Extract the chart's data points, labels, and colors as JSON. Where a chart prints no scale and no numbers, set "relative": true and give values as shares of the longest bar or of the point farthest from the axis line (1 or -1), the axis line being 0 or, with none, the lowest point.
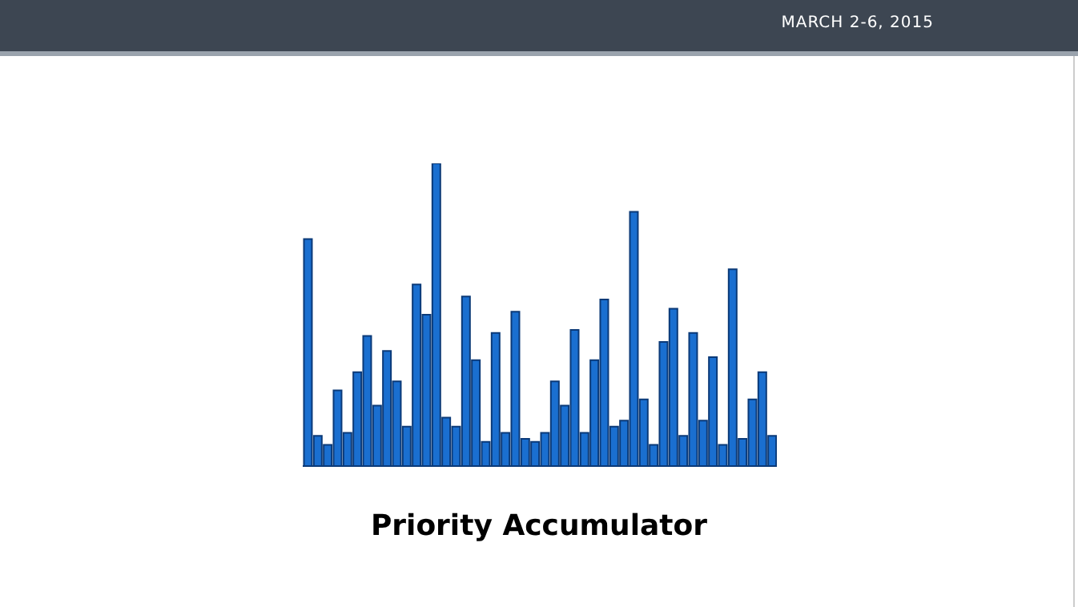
{
  "chart_data": {
    "type": "bar",
    "title": "Priority Accumulator",
    "relative": true,
    "color": "#1a6fd0",
    "categories": [
      null,
      null,
      null,
      null,
      null,
      null,
      null,
      null,
      null,
      null,
      null,
      null,
      null,
      null,
      null,
      null,
      null,
      null,
      null,
      null,
      null,
      null,
      null,
      null,
      null,
      null,
      null,
      null,
      null,
      null,
      null,
      null,
      null,
      null,
      null,
      null,
      null,
      null,
      null,
      null,
      null,
      null,
      null,
      null,
      null,
      null,
      null,
      null
    ],
    "values": [
      0.75,
      0.1,
      0.07,
      0.25,
      0.11,
      0.31,
      0.43,
      0.2,
      0.38,
      0.28,
      0.13,
      0.6,
      0.5,
      1,
      0.16,
      0.13,
      0.56,
      0.35,
      0.08,
      0.44,
      0.11,
      0.51,
      0.09,
      0.08,
      0.11,
      0.28,
      0.2,
      0.45,
      0.11,
      0.35,
      0.55,
      0.13,
      0.15,
      0.84,
      0.22,
      0.07,
      0.41,
      0.52,
      0.1,
      0.44,
      0.15,
      0.36,
      0.07,
      0.65,
      0.09,
      0.22,
      0.31,
      0.1
    ],
    "annotations": [
      "MARCH 2-6, 2015"
    ]
  }
}
